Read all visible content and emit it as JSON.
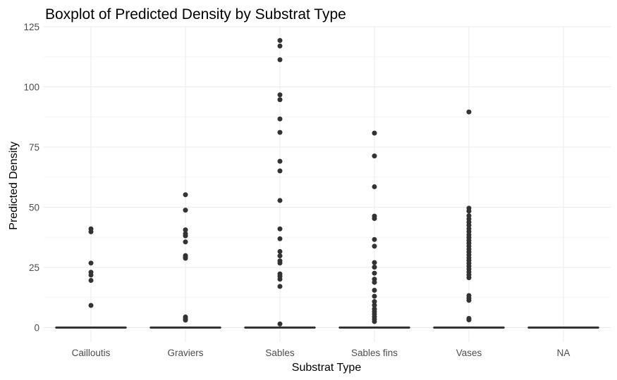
{
  "chart_data": {
    "type": "boxplot",
    "title": "Boxplot of Predicted Density by Substrat Type",
    "xlabel": "Substrat Type",
    "ylabel": "Predicted Density",
    "ylim": [
      -6,
      125
    ],
    "yticks": [
      0,
      25,
      50,
      75,
      100,
      125
    ],
    "grid": true,
    "categories": [
      "Cailloutis",
      "Graviers",
      "Sables",
      "Sables fins",
      "Vases",
      "NA"
    ],
    "series": [
      {
        "category": "Cailloutis",
        "q1": 0,
        "median": 0,
        "q3": 0,
        "whisker_low": 0,
        "whisker_high": 0,
        "outliers": [
          41,
          39.8,
          26.8,
          23,
          21.8,
          19.6,
          9.2
        ]
      },
      {
        "category": "Graviers",
        "q1": 0,
        "median": 0,
        "q3": 0,
        "whisker_low": 0,
        "whisker_high": 0,
        "outliers": [
          55.2,
          48.8,
          40.6,
          39,
          38.1,
          35.6,
          29.9,
          29.2,
          28.8,
          4.4,
          3.7,
          3.1
        ]
      },
      {
        "category": "Sables",
        "q1": 0,
        "median": 0,
        "q3": 0,
        "whisker_low": 0,
        "whisker_high": 0,
        "outliers": [
          119.3,
          117,
          111.3,
          96.7,
          94.7,
          86.7,
          81.1,
          69.1,
          65.1,
          52.8,
          41,
          36.9,
          31.6,
          29.8,
          27.7,
          26.8,
          22.3,
          21.3,
          20.1,
          17.1,
          1.5
        ]
      },
      {
        "category": "Sables fins",
        "q1": 0,
        "median": 0,
        "q3": 0,
        "whisker_low": 0,
        "whisker_high": 0,
        "outliers": [
          80.8,
          71.3,
          58.5,
          46.3,
          45.3,
          36.6,
          33.8,
          27,
          25.1,
          22.6,
          20.1,
          18.8,
          15.5,
          13,
          10.8,
          9.3,
          7.7,
          6.6,
          5.6,
          4.5,
          3.5,
          2.5
        ]
      },
      {
        "category": "Vases",
        "q1": 0,
        "median": 0,
        "q3": 0,
        "whisker_low": 0,
        "whisker_high": 0,
        "outliers": [
          89.6,
          49.6,
          48.4,
          46.5,
          45.1,
          43.8,
          42.5,
          41.1,
          39.9,
          38.6,
          37.4,
          36.2,
          35,
          33.8,
          32.6,
          31.4,
          30.2,
          29,
          27.9,
          26.7,
          25.5,
          24.3,
          23.1,
          21.9,
          20.7,
          13.3,
          12.2,
          11.3,
          3.8,
          3.2
        ]
      },
      {
        "category": "NA",
        "q1": 0,
        "median": 0,
        "q3": 0,
        "whisker_low": 0,
        "whisker_high": 0,
        "outliers": []
      }
    ],
    "colors": {
      "box_line": "#333333",
      "point": "#333333",
      "grid": "#ebebeb",
      "background": "#ffffff"
    }
  }
}
